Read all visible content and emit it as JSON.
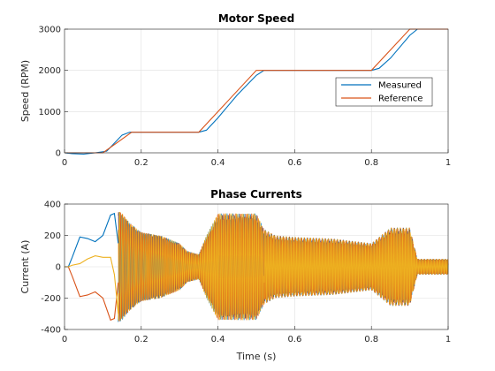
{
  "chart_data": [
    {
      "type": "line",
      "title": "Motor Speed",
      "xlabel": "",
      "ylabel": "Speed (RPM)",
      "xlim": [
        0,
        1
      ],
      "ylim": [
        0,
        3000
      ],
      "xticks": [
        "0",
        "0.2",
        "0.4",
        "0.6",
        "0.8",
        "1"
      ],
      "yticks": [
        "0",
        "1000",
        "2000",
        "3000"
      ],
      "grid": true,
      "legend_position": "right",
      "series": [
        {
          "name": "Measured",
          "color": "#0072BD",
          "x": [
            0,
            0.02,
            0.05,
            0.08,
            0.11,
            0.15,
            0.17,
            0.2,
            0.35,
            0.37,
            0.4,
            0.45,
            0.5,
            0.52,
            0.55,
            0.6,
            0.8,
            0.82,
            0.85,
            0.9,
            0.92,
            0.95,
            1.0
          ],
          "y": [
            0,
            -20,
            -30,
            0,
            40,
            430,
            500,
            500,
            500,
            550,
            850,
            1400,
            1880,
            2000,
            2000,
            2000,
            2000,
            2050,
            2300,
            2850,
            3000,
            3000,
            3000
          ]
        },
        {
          "name": "Reference",
          "color": "#D95319",
          "x": [
            0,
            0.1,
            0.175,
            0.35,
            0.5,
            0.8,
            0.9,
            1.0
          ],
          "y": [
            0,
            0,
            500,
            500,
            2000,
            2000,
            3000,
            3000
          ]
        }
      ]
    },
    {
      "type": "line",
      "title": "Phase Currents",
      "xlabel": "Time (s)",
      "ylabel": "Current (A)",
      "xlim": [
        0,
        1
      ],
      "ylim": [
        -400,
        400
      ],
      "xticks": [
        "0",
        "0.2",
        "0.4",
        "0.6",
        "0.8",
        "1"
      ],
      "yticks": [
        "-400",
        "-200",
        "0",
        "200",
        "400"
      ],
      "grid": true,
      "envelope": {
        "t": [
          0,
          0.1,
          0.12,
          0.14,
          0.15,
          0.17,
          0.2,
          0.25,
          0.3,
          0.32,
          0.35,
          0.37,
          0.4,
          0.45,
          0.5,
          0.52,
          0.55,
          0.6,
          0.7,
          0.8,
          0.82,
          0.85,
          0.9,
          0.92,
          1.0
        ],
        "amp": [
          0,
          0,
          200,
          360,
          340,
          280,
          220,
          200,
          150,
          100,
          80,
          200,
          340,
          340,
          340,
          240,
          200,
          190,
          180,
          150,
          190,
          250,
          250,
          50,
          50
        ]
      },
      "series": [
        {
          "name": "",
          "color": "#0072BD",
          "x": [
            0,
            0.01,
            0.02,
            0.04,
            0.06,
            0.08,
            0.1,
            0.12,
            0.13,
            0.14
          ],
          "y": [
            0,
            0,
            60,
            190,
            180,
            160,
            200,
            330,
            340,
            150
          ]
        },
        {
          "name": "",
          "color": "#D95319",
          "x": [
            0,
            0.01,
            0.02,
            0.04,
            0.06,
            0.08,
            0.1,
            0.12,
            0.13,
            0.14
          ],
          "y": [
            0,
            0,
            -60,
            -190,
            -180,
            -160,
            -200,
            -340,
            -330,
            -100
          ]
        },
        {
          "name": "",
          "color": "#EDB120",
          "x": [
            0,
            0.01,
            0.02,
            0.04,
            0.06,
            0.08,
            0.1,
            0.12,
            0.13,
            0.14
          ],
          "y": [
            0,
            0,
            10,
            20,
            50,
            70,
            60,
            60,
            -50,
            -300
          ]
        }
      ]
    }
  ]
}
